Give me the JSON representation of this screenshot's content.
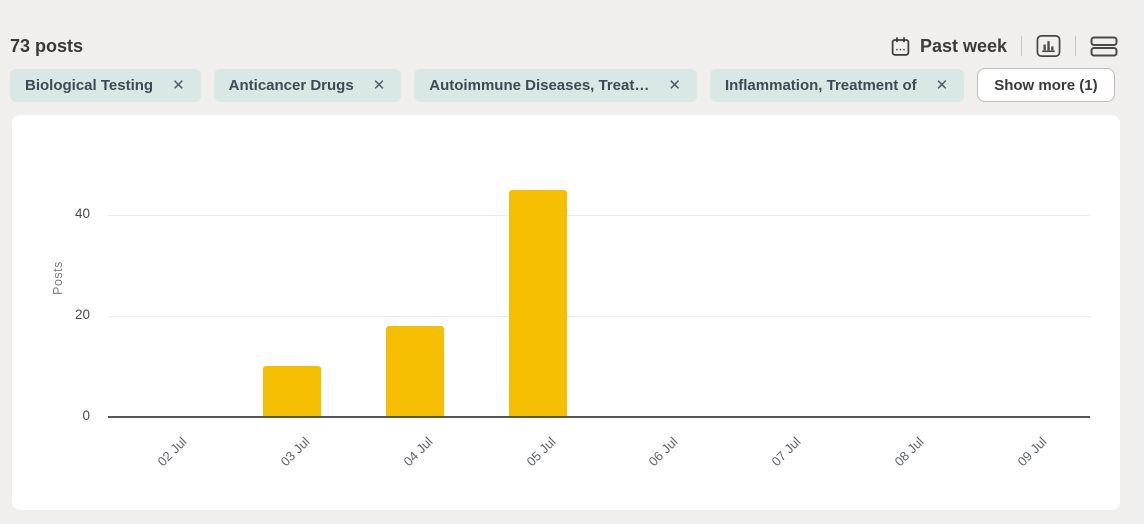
{
  "header": {
    "post_count": "73 posts",
    "date_filter_label": "Past week"
  },
  "filters": {
    "chips": [
      {
        "label": "Biological Testing"
      },
      {
        "label": "Anticancer Drugs"
      },
      {
        "label": "Autoimmune Diseases, Treat…"
      },
      {
        "label": "Inflammation, Treatment of"
      }
    ],
    "show_more_label": "Show more (1)"
  },
  "icons": {
    "close": "✕",
    "calendar": "calendar-icon",
    "bar_chart_view": "bar-chart-icon",
    "list_view": "stacked-rows-icon"
  },
  "chart_data": {
    "type": "bar",
    "title": "",
    "xlabel": "",
    "ylabel": "Posts",
    "categories": [
      "02 Jul",
      "03 Jul",
      "04 Jul",
      "05 Jul",
      "06 Jul",
      "07 Jul",
      "08 Jul",
      "09 Jul"
    ],
    "values": [
      0,
      10,
      18,
      45,
      0,
      0,
      0,
      0
    ],
    "yticks": [
      0,
      20,
      40
    ],
    "ylim": [
      0,
      45
    ],
    "grid": true,
    "legend": "none",
    "bar_color": "#F6BE00"
  },
  "colors": {
    "page_background": "#f0efed",
    "card_background": "#ffffff",
    "chip_background": "#d9e8e4",
    "chip_text": "#3c4b55",
    "bar": "#F6BE00",
    "gridline": "#ececec",
    "axis": "#565656"
  }
}
